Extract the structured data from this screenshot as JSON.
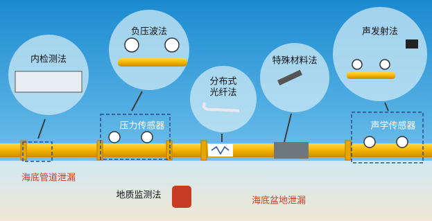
{
  "bubbles": [
    {
      "label": "内检测法"
    },
    {
      "label": "负压波法"
    },
    {
      "label_lines": [
        "分布式",
        "光纤法"
      ]
    },
    {
      "label": "特殊材料法"
    },
    {
      "label": "声发射法"
    }
  ],
  "sensors": {
    "pressure": "压力传感器",
    "acoustic": "声学传感器"
  },
  "leaks": {
    "pipeline": "海底管道泄漏",
    "basin": "海底盆地泄漏"
  },
  "geology": "地质监测法"
}
